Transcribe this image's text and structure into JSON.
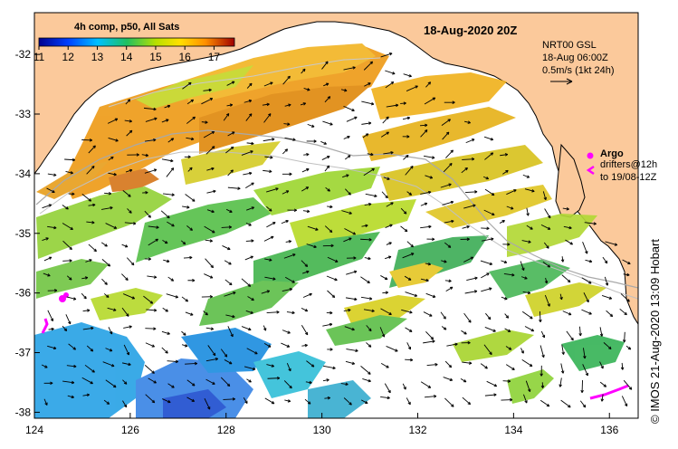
{
  "map": {
    "title": "18-Aug-2020 20Z",
    "colorbar": {
      "title": "4h comp, p50, All Sats",
      "tick_labels": [
        "11",
        "12",
        "13",
        "14",
        "15",
        "16",
        "17"
      ],
      "range": [
        11,
        17.7
      ]
    },
    "velocity_info": {
      "line1": "NRT00 GSL",
      "line2": "18-Aug 06:00Z",
      "line3": "0.5m/s (1kt 24h)"
    },
    "argo_legend": {
      "label": "Argo",
      "line1": "drifters@12h",
      "line2": "to 19/08-12Z"
    },
    "credit": "© IMOS 21-Aug-2020 13:09 Hobart",
    "x_axis": {
      "ticks": [
        "124",
        "126",
        "128",
        "130",
        "132",
        "134",
        "136"
      ],
      "range": [
        124,
        136.6
      ]
    },
    "y_axis": {
      "ticks": [
        "-32",
        "-33",
        "-34",
        "-35",
        "-36",
        "-37",
        "-38"
      ],
      "range": [
        -38.1,
        -31.3
      ]
    },
    "colors": {
      "land": "#fbc99b",
      "ocean": "#ffffff",
      "argo": "#ff00ff",
      "shelf_contour": "#a9a9a9"
    },
    "icons": [
      "argo-float-icon",
      "drifter-track-icon",
      "velocity-arrow-icon"
    ]
  }
}
